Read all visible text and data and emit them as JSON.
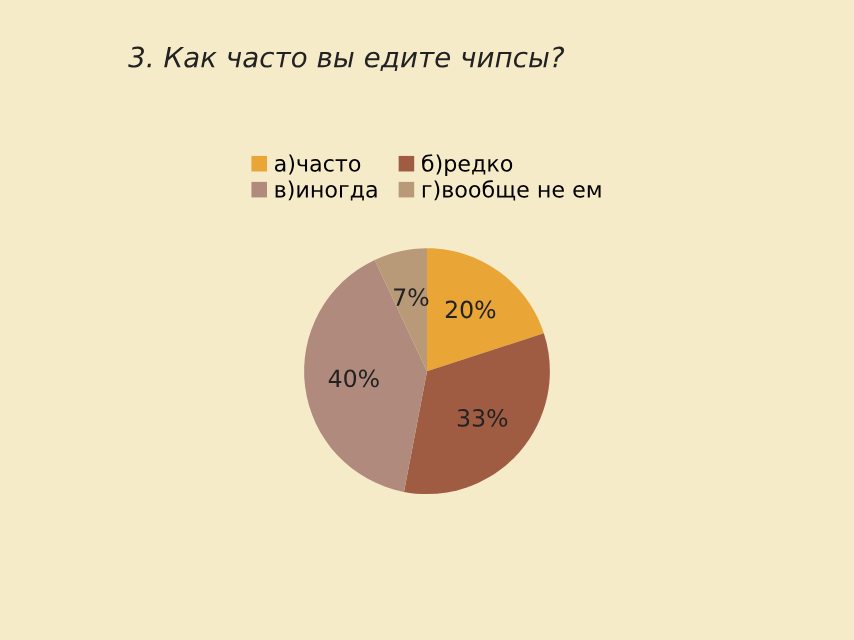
{
  "chart_data": {
    "type": "pie",
    "title": "3. Как часто вы едите чипсы?",
    "categories": [
      "а)часто",
      "б)редко",
      "в)иногда",
      "г)вообще не ем"
    ],
    "values": [
      20,
      33,
      40,
      7
    ],
    "colors": [
      "#e9a535",
      "#a05c42",
      "#b08a7c",
      "#b89a78"
    ],
    "value_labels": [
      "20%",
      "33%",
      "40%",
      "7%"
    ],
    "legend": "top"
  }
}
